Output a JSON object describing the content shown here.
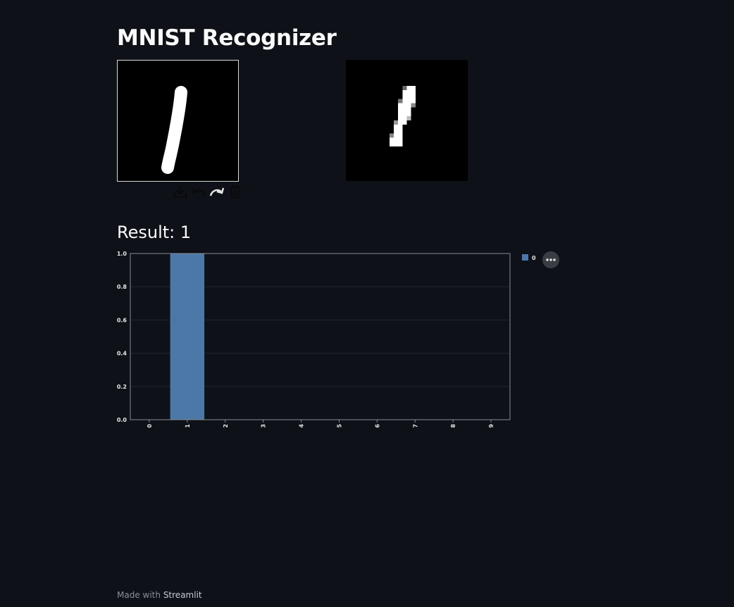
{
  "app": {
    "title": "MNIST Recognizer"
  },
  "canvas": {
    "background": "#000000",
    "stroke_color": "#ffffff",
    "toolbar": [
      {
        "name": "download-icon",
        "label": "download"
      },
      {
        "name": "undo-icon",
        "label": "undo"
      },
      {
        "name": "redo-icon",
        "label": "redo"
      },
      {
        "name": "trash-icon",
        "label": "clear"
      }
    ]
  },
  "result": {
    "label": "Result:",
    "value": "1"
  },
  "chart_data": {
    "type": "bar",
    "categories": [
      "0",
      "1",
      "2",
      "3",
      "4",
      "5",
      "6",
      "7",
      "8",
      "9"
    ],
    "series": [
      {
        "name": "0",
        "values": [
          0,
          1.0,
          0,
          0,
          0,
          0,
          0,
          0,
          0,
          0
        ]
      }
    ],
    "ylim": [
      0,
      1.0
    ],
    "yticks": [
      "0.0",
      "0.2",
      "0.4",
      "0.6",
      "0.8",
      "1.0"
    ],
    "xlabel": "",
    "ylabel": "",
    "grid": true,
    "legend": "top-right",
    "bar_color": "#4c78a8"
  },
  "footer": {
    "prefix": "Made with",
    "brand": "Streamlit"
  }
}
